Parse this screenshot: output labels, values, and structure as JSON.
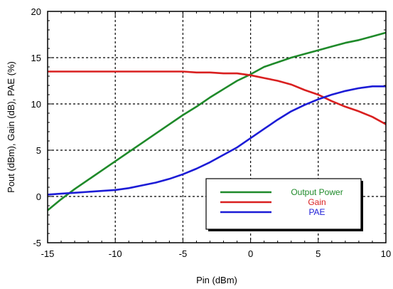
{
  "chart_data": {
    "type": "line",
    "title": "",
    "xlabel": "Pin (dBm)",
    "ylabel": "Pout (dBm), Gain (dB), PAE (%)",
    "xlim": [
      -15,
      10
    ],
    "ylim": [
      -5,
      20
    ],
    "xticks": [
      -15,
      -10,
      -5,
      0,
      5,
      10
    ],
    "yticks": [
      -5,
      0,
      5,
      10,
      15,
      20
    ],
    "xtick_labels": [
      "-15",
      "-10",
      "-5",
      "0",
      "5",
      "10"
    ],
    "ytick_labels": [
      "-5",
      "0",
      "5",
      "10",
      "15",
      "20"
    ],
    "grid": true,
    "legend_position": "bottom-right",
    "series": [
      {
        "name": "Output Power",
        "color": "#1f8a2a",
        "x": [
          -15,
          -14,
          -13,
          -12,
          -11,
          -10,
          -9,
          -8,
          -7,
          -6,
          -5,
          -4,
          -3,
          -2,
          -1,
          0,
          1,
          2,
          3,
          4,
          5,
          6,
          7,
          8,
          9,
          10
        ],
        "y": [
          -1.5,
          -0.3,
          0.8,
          1.8,
          2.8,
          3.8,
          4.8,
          5.8,
          6.8,
          7.8,
          8.8,
          9.7,
          10.7,
          11.6,
          12.5,
          13.2,
          14.0,
          14.5,
          15.0,
          15.4,
          15.8,
          16.2,
          16.6,
          16.9,
          17.3,
          17.7
        ]
      },
      {
        "name": "Gain",
        "color": "#d92020",
        "x": [
          -15,
          -14,
          -13,
          -12,
          -11,
          -10,
          -9,
          -8,
          -7,
          -6,
          -5,
          -4,
          -3,
          -2,
          -1,
          0,
          1,
          2,
          3,
          4,
          5,
          6,
          7,
          8,
          9,
          10
        ],
        "y": [
          13.5,
          13.5,
          13.5,
          13.5,
          13.5,
          13.5,
          13.5,
          13.5,
          13.5,
          13.5,
          13.5,
          13.4,
          13.4,
          13.3,
          13.3,
          13.1,
          12.8,
          12.5,
          12.1,
          11.5,
          11.0,
          10.3,
          9.7,
          9.2,
          8.6,
          7.8
        ]
      },
      {
        "name": "PAE",
        "color": "#1c1cd6",
        "x": [
          -15,
          -14,
          -13,
          -12,
          -11,
          -10,
          -9,
          -8,
          -7,
          -6,
          -5,
          -4,
          -3,
          -2,
          -1,
          0,
          1,
          2,
          3,
          4,
          5,
          6,
          7,
          8,
          9,
          10
        ],
        "y": [
          0.2,
          0.3,
          0.4,
          0.5,
          0.6,
          0.7,
          0.9,
          1.2,
          1.5,
          1.9,
          2.4,
          3.0,
          3.7,
          4.5,
          5.3,
          6.3,
          7.3,
          8.3,
          9.2,
          9.9,
          10.5,
          11.0,
          11.4,
          11.7,
          11.9,
          11.9
        ]
      }
    ]
  }
}
